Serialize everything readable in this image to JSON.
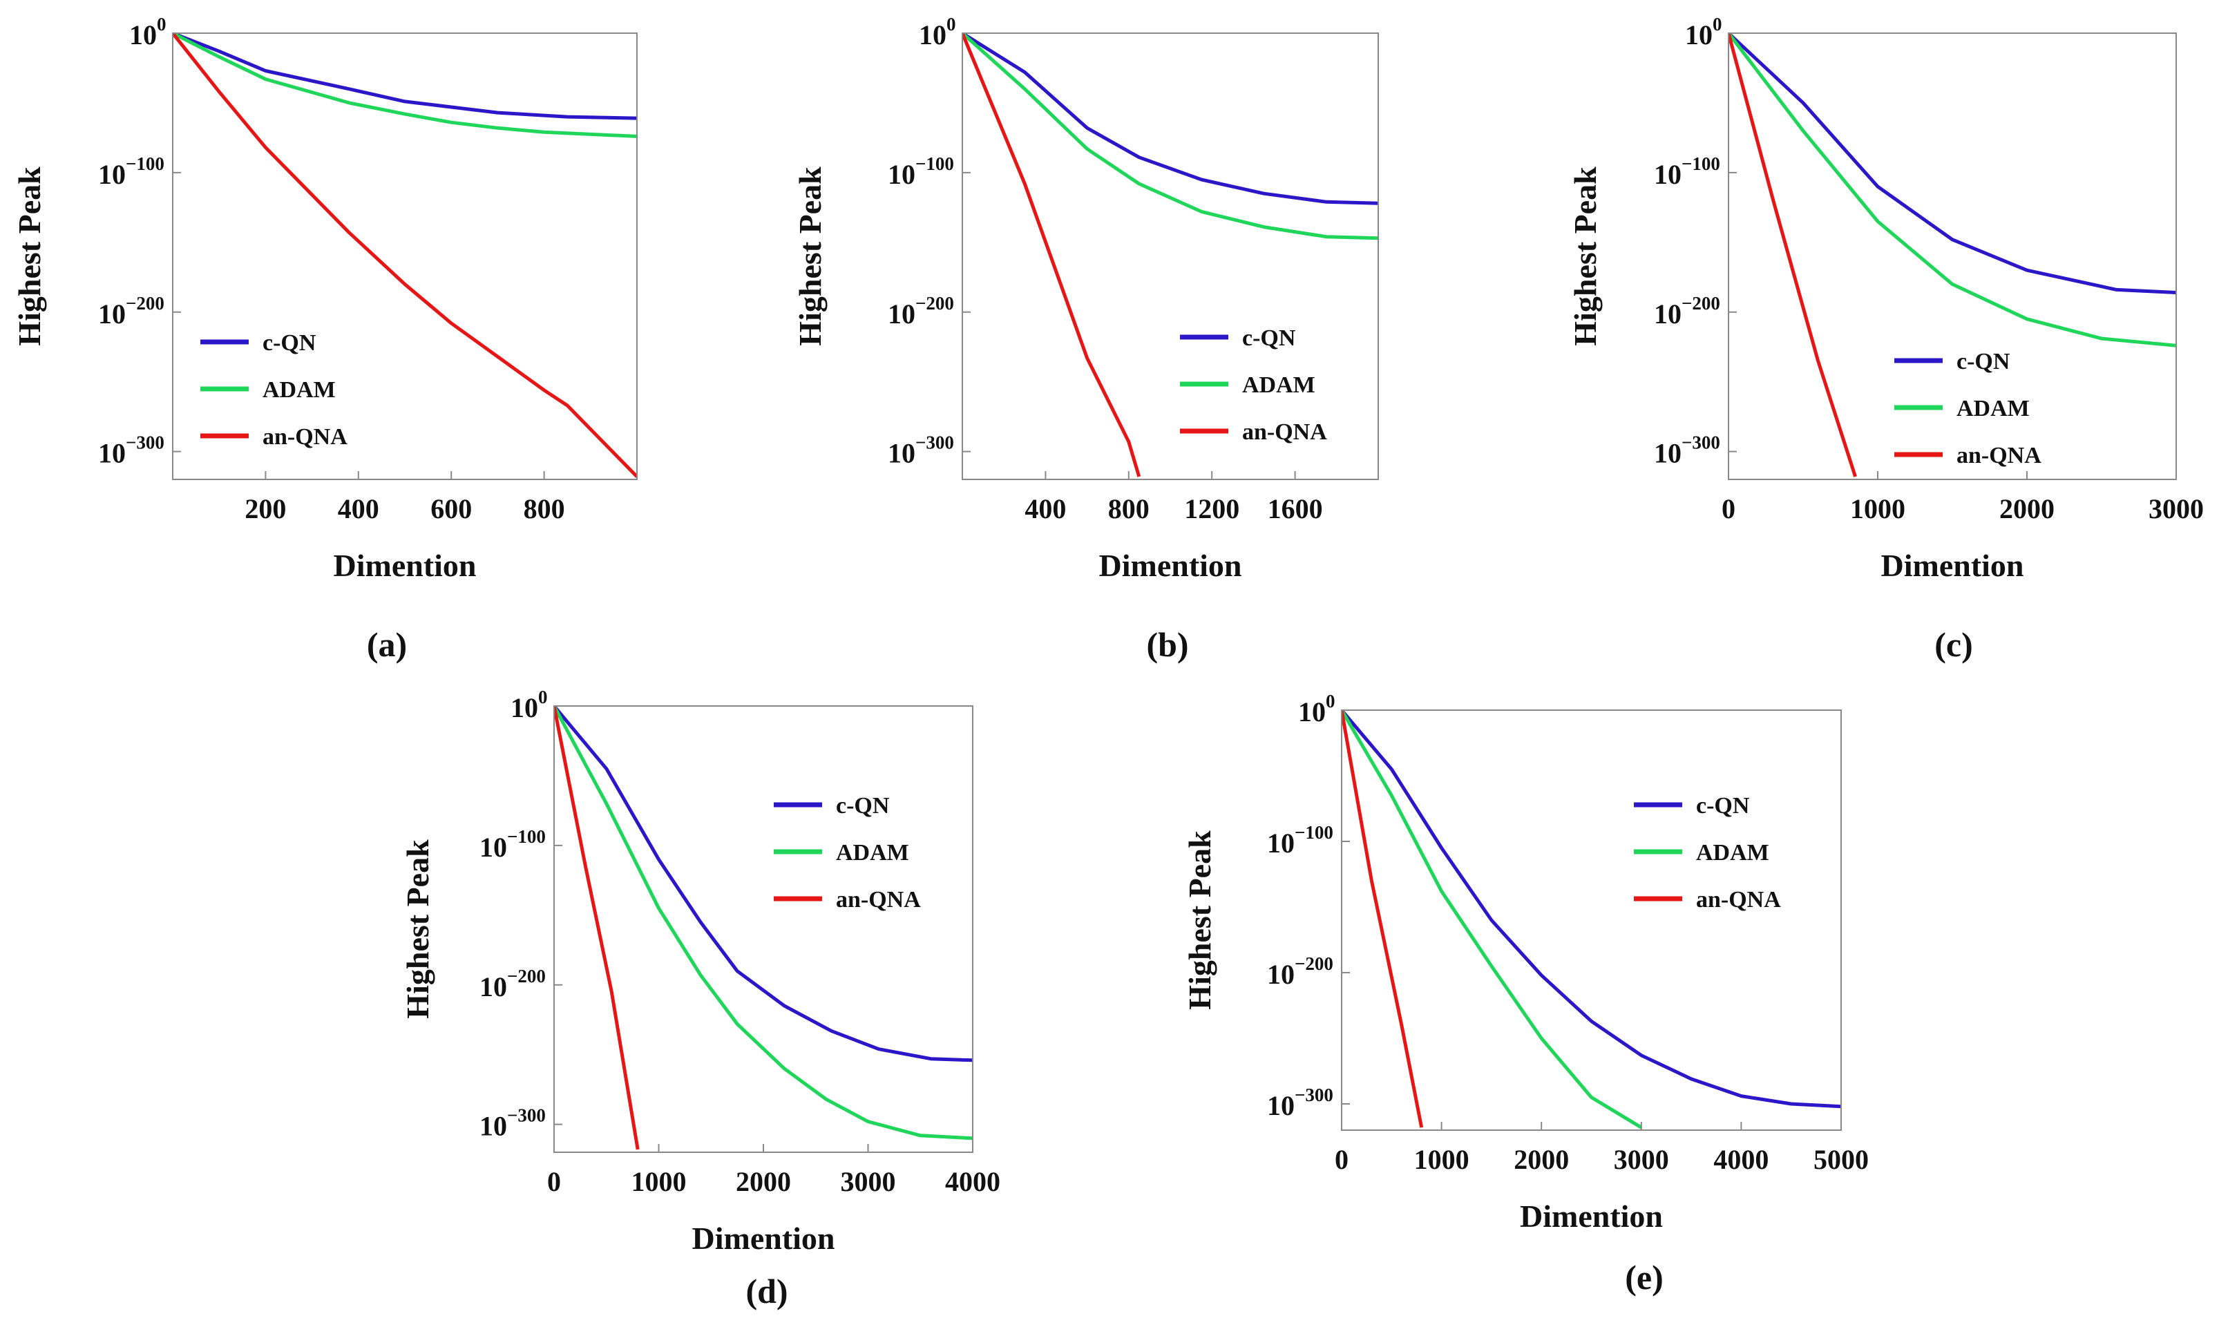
{
  "figure": {
    "panels": [
      "a",
      "b",
      "c",
      "d",
      "e"
    ]
  },
  "colors": {
    "c-QN": "#2b17c8",
    "ADAM": "#1fd65a",
    "an-QNA": "#e51616",
    "frame": "#888888",
    "text": "#111111"
  },
  "chart_data": [
    {
      "id": "a",
      "type": "line",
      "panel_label": "(a)",
      "xlabel": "Dimention",
      "ylabel": "Highest Peak",
      "xlim": [
        0,
        1000
      ],
      "ylim": [
        -320,
        0
      ],
      "xticks": [
        200,
        400,
        600,
        800
      ],
      "yticks": [
        {
          "value": 0,
          "base": "10",
          "exp": "0"
        },
        {
          "value": -100,
          "base": "10",
          "exp": "−100"
        },
        {
          "value": -200,
          "base": "10",
          "exp": "−200"
        },
        {
          "value": -300,
          "base": "10",
          "exp": "−300"
        }
      ],
      "legend_position": "lower-left",
      "series": [
        {
          "name": "c-QN",
          "key": "c-QN",
          "x": [
            0,
            100,
            200,
            380,
            500,
            700,
            850,
            1000
          ],
          "y": [
            0,
            -13,
            -27,
            -40,
            -49,
            -57,
            -60,
            -61
          ]
        },
        {
          "name": "ADAM",
          "key": "ADAM",
          "x": [
            0,
            100,
            200,
            380,
            500,
            600,
            700,
            800,
            1000
          ],
          "y": [
            0,
            -17,
            -33,
            -50,
            -58,
            -64,
            -68,
            -71,
            -74
          ]
        },
        {
          "name": "an-QNA",
          "key": "an-QNA",
          "x": [
            0,
            100,
            200,
            380,
            500,
            600,
            700,
            800,
            850,
            1000
          ],
          "y": [
            0,
            -42,
            -82,
            -143,
            -180,
            -208,
            -232,
            -256,
            -267,
            -318
          ]
        }
      ]
    },
    {
      "id": "b",
      "type": "line",
      "panel_label": "(b)",
      "xlabel": "Dimention",
      "ylabel": "Highest Peak",
      "xlim": [
        0,
        2000
      ],
      "ylim": [
        -320,
        0
      ],
      "xticks": [
        400,
        800,
        1200,
        1600
      ],
      "yticks": [
        {
          "value": 0,
          "base": "10",
          "exp": "0"
        },
        {
          "value": -100,
          "base": "10",
          "exp": "−100"
        },
        {
          "value": -200,
          "base": "10",
          "exp": "−200"
        },
        {
          "value": -300,
          "base": "10",
          "exp": "−300"
        }
      ],
      "legend_position": "lower-right",
      "series": [
        {
          "name": "c-QN",
          "key": "c-QN",
          "x": [
            0,
            300,
            600,
            850,
            1150,
            1450,
            1750,
            2000
          ],
          "y": [
            0,
            -28,
            -68,
            -89,
            -105,
            -115,
            -121,
            -122
          ]
        },
        {
          "name": "ADAM",
          "key": "ADAM",
          "x": [
            0,
            300,
            600,
            850,
            1150,
            1450,
            1750,
            2000
          ],
          "y": [
            0,
            -40,
            -83,
            -108,
            -128,
            -139,
            -146,
            -147
          ]
        },
        {
          "name": "an-QNA",
          "key": "an-QNA",
          "x": [
            0,
            300,
            600,
            800,
            850
          ],
          "y": [
            0,
            -108,
            -233,
            -293,
            -318
          ]
        }
      ]
    },
    {
      "id": "c",
      "type": "line",
      "panel_label": "(c)",
      "xlabel": "Dimention",
      "ylabel": "Highest Peak",
      "xlim": [
        0,
        3000
      ],
      "ylim": [
        -320,
        0
      ],
      "xticks": [
        0,
        1000,
        2000,
        3000
      ],
      "yticks": [
        {
          "value": 0,
          "base": "10",
          "exp": "0"
        },
        {
          "value": -100,
          "base": "10",
          "exp": "−100"
        },
        {
          "value": -200,
          "base": "10",
          "exp": "−200"
        },
        {
          "value": -300,
          "base": "10",
          "exp": "−300"
        }
      ],
      "legend_position": "lower-right",
      "series": [
        {
          "name": "c-QN",
          "key": "c-QN",
          "x": [
            0,
            500,
            1000,
            1500,
            2000,
            2600,
            3000
          ],
          "y": [
            0,
            -50,
            -110,
            -148,
            -170,
            -184,
            -186
          ]
        },
        {
          "name": "ADAM",
          "key": "ADAM",
          "x": [
            0,
            500,
            1000,
            1500,
            2000,
            2500,
            3000
          ],
          "y": [
            0,
            -70,
            -135,
            -180,
            -205,
            -219,
            -224
          ]
        },
        {
          "name": "an-QNA",
          "key": "an-QNA",
          "x": [
            0,
            300,
            600,
            850
          ],
          "y": [
            0,
            -120,
            -235,
            -318
          ]
        }
      ]
    },
    {
      "id": "d",
      "type": "line",
      "panel_label": "(d)",
      "xlabel": "Dimention",
      "ylabel": "Highest Peak",
      "xlim": [
        0,
        4000
      ],
      "ylim": [
        -320,
        0
      ],
      "xticks": [
        0,
        1000,
        2000,
        3000,
        4000
      ],
      "yticks": [
        {
          "value": 0,
          "base": "10",
          "exp": "0"
        },
        {
          "value": -100,
          "base": "10",
          "exp": "−100"
        },
        {
          "value": -200,
          "base": "10",
          "exp": "−200"
        },
        {
          "value": -300,
          "base": "10",
          "exp": "−300"
        }
      ],
      "legend_position": "top-right",
      "series": [
        {
          "name": "c-QN",
          "key": "c-QN",
          "x": [
            0,
            500,
            1000,
            1400,
            1750,
            2200,
            2650,
            3100,
            3600,
            4000
          ],
          "y": [
            0,
            -45,
            -110,
            -155,
            -190,
            -215,
            -233,
            -246,
            -253,
            -254
          ]
        },
        {
          "name": "ADAM",
          "key": "ADAM",
          "x": [
            0,
            500,
            1000,
            1400,
            1750,
            2200,
            2600,
            3000,
            3500,
            4000
          ],
          "y": [
            0,
            -70,
            -145,
            -193,
            -228,
            -260,
            -282,
            -298,
            -308,
            -310
          ]
        },
        {
          "name": "an-QNA",
          "key": "an-QNA",
          "x": [
            0,
            300,
            550,
            800
          ],
          "y": [
            0,
            -115,
            -205,
            -318
          ]
        }
      ]
    },
    {
      "id": "e",
      "type": "line",
      "panel_label": "(e)",
      "xlabel": "Dimention",
      "ylabel": "Highest Peak",
      "xlim": [
        0,
        5000
      ],
      "ylim": [
        -320,
        0
      ],
      "xticks": [
        0,
        1000,
        2000,
        3000,
        4000,
        5000
      ],
      "yticks": [
        {
          "value": 0,
          "base": "10",
          "exp": "0"
        },
        {
          "value": -100,
          "base": "10",
          "exp": "−100"
        },
        {
          "value": -200,
          "base": "10",
          "exp": "−200"
        },
        {
          "value": -300,
          "base": "10",
          "exp": "−300"
        }
      ],
      "legend_position": "top-right",
      "series": [
        {
          "name": "c-QN",
          "key": "c-QN",
          "x": [
            0,
            500,
            1000,
            1500,
            2000,
            2500,
            3000,
            3500,
            4000,
            4500,
            5000
          ],
          "y": [
            0,
            -45,
            -105,
            -160,
            -202,
            -237,
            -263,
            -281,
            -294,
            -300,
            -302
          ]
        },
        {
          "name": "ADAM",
          "key": "ADAM",
          "x": [
            0,
            500,
            1000,
            1500,
            2000,
            2500,
            3000
          ],
          "y": [
            0,
            -65,
            -138,
            -195,
            -250,
            -295,
            -318
          ]
        },
        {
          "name": "an-QNA",
          "key": "an-QNA",
          "x": [
            0,
            300,
            600,
            800
          ],
          "y": [
            0,
            -130,
            -240,
            -318
          ]
        }
      ]
    }
  ]
}
